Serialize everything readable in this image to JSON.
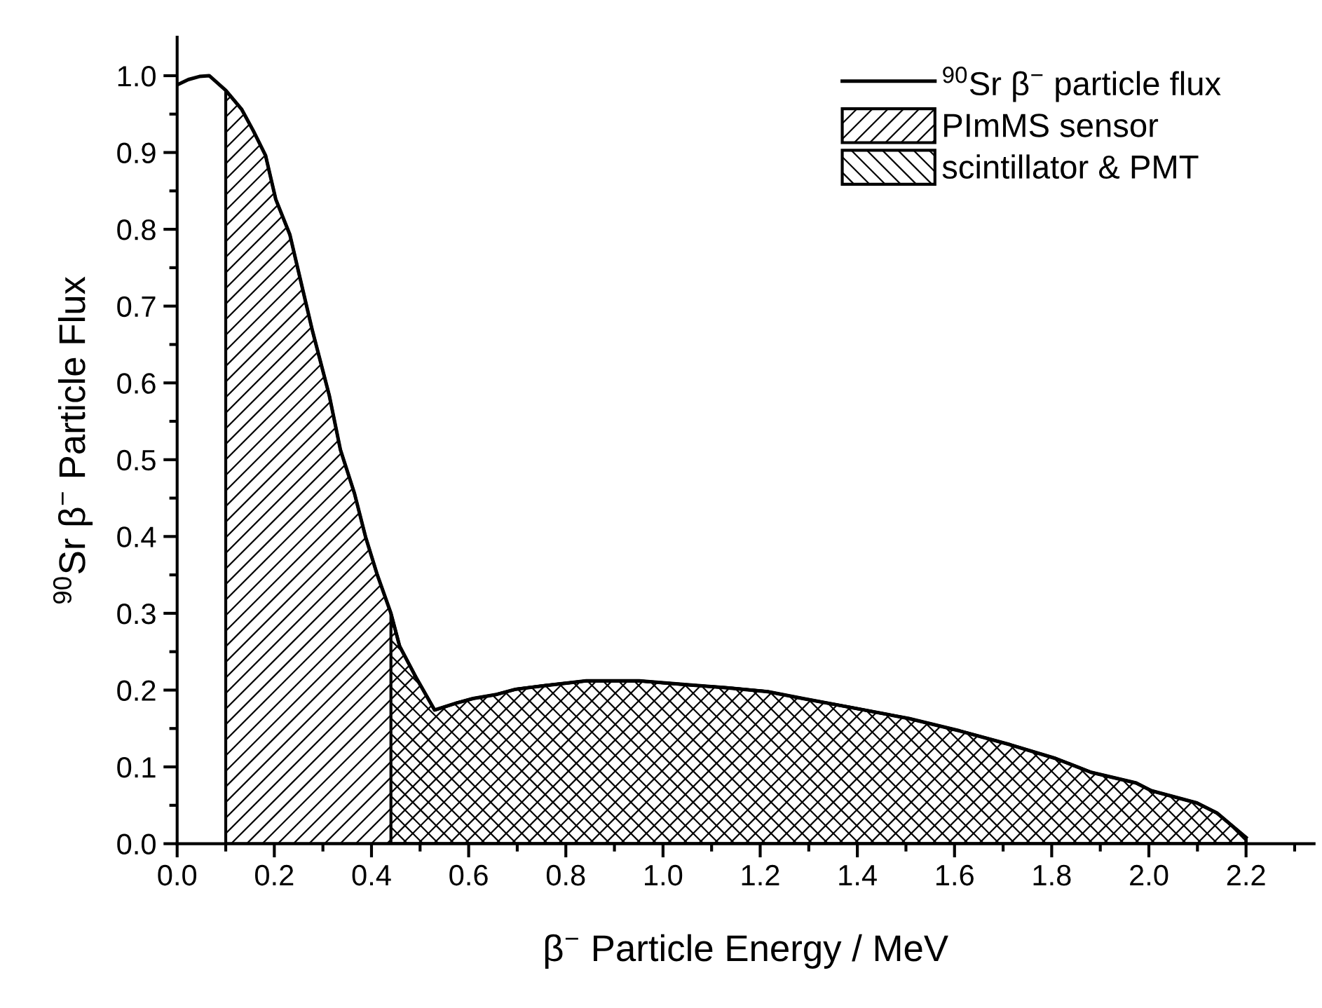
{
  "chart_data": {
    "type": "line",
    "xlabel": "β$^{−}$ Particle Energy / MeV",
    "ylabel": "$^{90}$Sr β$^{−}$ Particle Flux",
    "xlim": [
      0,
      2.34
    ],
    "ylim": [
      0,
      1.05
    ],
    "xticks": [
      {
        "value": 0,
        "label": "0.0"
      },
      {
        "value": 0.2,
        "label": "0.2"
      },
      {
        "value": 0.4,
        "label": "0.4"
      },
      {
        "value": 0.6,
        "label": "0.6"
      },
      {
        "value": 0.8,
        "label": "0.8"
      },
      {
        "value": 1.0,
        "label": "1.0"
      },
      {
        "value": 1.2,
        "label": "1.2"
      },
      {
        "value": 1.4,
        "label": "1.4"
      },
      {
        "value": 1.6,
        "label": "1.6"
      },
      {
        "value": 1.8,
        "label": "1.8"
      },
      {
        "value": 2.0,
        "label": "2.0"
      },
      {
        "value": 2.2,
        "label": "2.2"
      }
    ],
    "yticks": [
      {
        "value": 0,
        "label": "0.0"
      },
      {
        "value": 0.1,
        "label": "0.1"
      },
      {
        "value": 0.2,
        "label": "0.2"
      },
      {
        "value": 0.3,
        "label": "0.3"
      },
      {
        "value": 0.4,
        "label": "0.4"
      },
      {
        "value": 0.5,
        "label": "0.5"
      },
      {
        "value": 0.6,
        "label": "0.6"
      },
      {
        "value": 0.7,
        "label": "0.7"
      },
      {
        "value": 0.8,
        "label": "0.8"
      },
      {
        "value": 0.9,
        "label": "0.9"
      },
      {
        "value": 1.0,
        "label": "1.0"
      }
    ],
    "grid": false,
    "legend": "top right",
    "marker": "none",
    "line_style": "solid",
    "series": [
      {
        "name": "$^{90}$Sr β$^{−}$ particle flux",
        "color": "#000000",
        "x": [
          0,
          0.023,
          0.046,
          0.066,
          0.1,
          0.133,
          0.157,
          0.182,
          0.203,
          0.232,
          0.249,
          0.278,
          0.313,
          0.336,
          0.365,
          0.388,
          0.412,
          0.44,
          0.458,
          0.493,
          0.53,
          0.574,
          0.609,
          0.655,
          0.696,
          0.758,
          0.842,
          0.951,
          1.049,
          1.132,
          1.216,
          1.288,
          1.382,
          1.506,
          1.61,
          1.714,
          1.808,
          1.881,
          1.974,
          2.005,
          2.099,
          2.14,
          2.2
        ],
        "values": [
          0.988,
          0.995,
          0.999,
          1.0,
          0.981,
          0.956,
          0.928,
          0.896,
          0.839,
          0.793,
          0.747,
          0.669,
          0.584,
          0.513,
          0.456,
          0.399,
          0.35,
          0.3,
          0.257,
          0.215,
          0.174,
          0.183,
          0.189,
          0.194,
          0.201,
          0.206,
          0.212,
          0.212,
          0.207,
          0.203,
          0.198,
          0.189,
          0.178,
          0.163,
          0.147,
          0.129,
          0.111,
          0.093,
          0.079,
          0.069,
          0.053,
          0.04,
          0.008
        ]
      },
      {
        "name": "PImMS sensor",
        "type": "area",
        "color": "#000000",
        "x": [
          0.1,
          0.133,
          0.157,
          0.182,
          0.203,
          0.232,
          0.249,
          0.278,
          0.313,
          0.336,
          0.365,
          0.388,
          0.412,
          0.44,
          0.458,
          0.493,
          0.53,
          0.574,
          0.609,
          0.655,
          0.696,
          0.758,
          0.842,
          0.951,
          1.049,
          1.132,
          1.216,
          1.288,
          1.382,
          1.506,
          1.61,
          1.714,
          1.808,
          1.881,
          1.974,
          2.005,
          2.099,
          2.14,
          2.2
        ],
        "values": [
          0.981,
          0.956,
          0.928,
          0.896,
          0.839,
          0.793,
          0.747,
          0.669,
          0.584,
          0.513,
          0.456,
          0.399,
          0.35,
          0.3,
          0.257,
          0.215,
          0.174,
          0.183,
          0.189,
          0.194,
          0.201,
          0.206,
          0.212,
          0.212,
          0.207,
          0.203,
          0.198,
          0.189,
          0.178,
          0.163,
          0.147,
          0.129,
          0.111,
          0.093,
          0.079,
          0.069,
          0.053,
          0.04,
          0.008
        ]
      },
      {
        "name": "scintillator & PMT",
        "type": "area",
        "color": "#000000",
        "x": [
          0.44,
          0.458,
          0.493,
          0.53,
          0.574,
          0.609,
          0.655,
          0.696,
          0.758,
          0.842,
          0.951,
          1.049,
          1.132,
          1.216,
          1.288,
          1.382,
          1.506,
          1.61,
          1.714,
          1.808,
          1.881,
          1.974,
          2.005,
          2.099,
          2.14,
          2.2
        ],
        "values": [
          0.3,
          0.257,
          0.215,
          0.174,
          0.183,
          0.189,
          0.194,
          0.201,
          0.206,
          0.212,
          0.212,
          0.207,
          0.203,
          0.198,
          0.189,
          0.178,
          0.163,
          0.147,
          0.129,
          0.111,
          0.093,
          0.079,
          0.069,
          0.053,
          0.04,
          0.008
        ]
      }
    ]
  }
}
